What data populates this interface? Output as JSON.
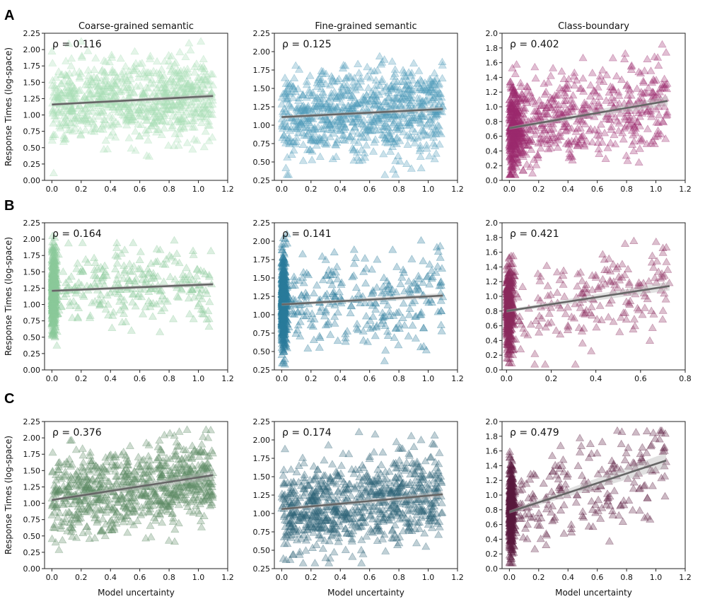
{
  "row_labels": [
    "A",
    "B",
    "C"
  ],
  "colors": {
    "A": [
      "#a8ddb5",
      "#4f9bba",
      "#9c2a6e"
    ],
    "B": [
      "#8cc99a",
      "#2a7c9c",
      "#8a2a5e"
    ],
    "C": [
      "#5e8a65",
      "#2e6478",
      "#5a1a3e"
    ],
    "fit_line": "#666666",
    "ci_band": "#bbbbbb"
  },
  "chart_data": [
    {
      "type": "scatter",
      "row": "A",
      "col": 0,
      "title": "Coarse-grained semantic",
      "rho": "ρ = 0.116",
      "ylabel": "Response Times (log-space)",
      "xlabel": "",
      "xlim": [
        -0.05,
        1.2
      ],
      "ylim": [
        0,
        2.25
      ],
      "xticks": [
        "0.0",
        "0.2",
        "0.4",
        "0.6",
        "0.8",
        "1.0",
        "1.2"
      ],
      "yticks": [
        "0.00",
        "0.25",
        "0.50",
        "0.75",
        "1.00",
        "1.25",
        "1.50",
        "1.75",
        "2.00",
        "2.25"
      ],
      "fit": {
        "x0": 0,
        "y0": 1.16,
        "x1": 1.1,
        "y1": 1.29
      },
      "scatter": {
        "dist": "uniform",
        "xmin": 0,
        "xmax": 1.1,
        "mean": 1.25,
        "sd": 0.3,
        "n": 800,
        "opacity": 0.3
      }
    },
    {
      "type": "scatter",
      "row": "A",
      "col": 1,
      "title": "Fine-grained semantic",
      "rho": "ρ = 0.125",
      "ylabel": "",
      "xlabel": "",
      "xlim": [
        -0.05,
        1.2
      ],
      "ylim": [
        0.25,
        2.25
      ],
      "xticks": [
        "0.0",
        "0.2",
        "0.4",
        "0.6",
        "0.8",
        "1.0",
        "1.2"
      ],
      "yticks": [
        "0.25",
        "0.50",
        "0.75",
        "1.00",
        "1.25",
        "1.50",
        "1.75",
        "2.00",
        "2.25"
      ],
      "fit": {
        "x0": 0,
        "y0": 1.11,
        "x1": 1.1,
        "y1": 1.22
      },
      "scatter": {
        "dist": "uniform",
        "xmin": 0,
        "xmax": 1.1,
        "mean": 1.15,
        "sd": 0.3,
        "n": 800,
        "opacity": 0.3
      }
    },
    {
      "type": "scatter",
      "row": "A",
      "col": 2,
      "title": "Class-boundary",
      "rho": "ρ = 0.402",
      "ylabel": "",
      "xlabel": "",
      "xlim": [
        -0.05,
        1.2
      ],
      "ylim": [
        0,
        2.0
      ],
      "xticks": [
        "0.0",
        "0.2",
        "0.4",
        "0.6",
        "0.8",
        "1.0",
        "1.2"
      ],
      "yticks": [
        "0.0",
        "0.2",
        "0.4",
        "0.6",
        "0.8",
        "1.0",
        "1.2",
        "1.4",
        "1.6",
        "1.8",
        "2.0"
      ],
      "fit": {
        "x0": 0,
        "y0": 0.71,
        "x1": 1.08,
        "y1": 1.08
      },
      "scatter": {
        "dist": "mixed",
        "xmin": 0,
        "xmax": 1.08,
        "mean": 0.85,
        "sd": 0.3,
        "n": 800,
        "opacity": 0.3
      }
    },
    {
      "type": "scatter",
      "row": "B",
      "col": 0,
      "title": "",
      "rho": "ρ = 0.164",
      "ylabel": "Response Times (log-space)",
      "xlabel": "",
      "xlim": [
        -0.05,
        1.2
      ],
      "ylim": [
        0,
        2.25
      ],
      "xticks": [
        "0.0",
        "0.2",
        "0.4",
        "0.6",
        "0.8",
        "1.0",
        "1.2"
      ],
      "yticks": [
        "0.00",
        "0.25",
        "0.50",
        "0.75",
        "1.00",
        "1.25",
        "1.50",
        "1.75",
        "2.00",
        "2.25"
      ],
      "fit": {
        "x0": 0,
        "y0": 1.21,
        "x1": 1.1,
        "y1": 1.31
      },
      "scatter": {
        "dist": "concentrated",
        "xmin": 0,
        "xmax": 1.1,
        "mean": 1.25,
        "sd": 0.3,
        "n": 800,
        "opacity": 0.3
      }
    },
    {
      "type": "scatter",
      "row": "B",
      "col": 1,
      "title": "",
      "rho": "ρ = 0.141",
      "ylabel": "",
      "xlabel": "",
      "xlim": [
        -0.05,
        1.2
      ],
      "ylim": [
        0.25,
        2.25
      ],
      "xticks": [
        "0.0",
        "0.2",
        "0.4",
        "0.6",
        "0.8",
        "1.0",
        "1.2"
      ],
      "yticks": [
        "0.25",
        "0.50",
        "0.75",
        "1.00",
        "1.25",
        "1.50",
        "1.75",
        "2.00",
        "2.25"
      ],
      "fit": {
        "x0": 0,
        "y0": 1.14,
        "x1": 1.1,
        "y1": 1.26
      },
      "scatter": {
        "dist": "concentrated",
        "xmin": 0,
        "xmax": 1.1,
        "mean": 1.15,
        "sd": 0.3,
        "n": 800,
        "opacity": 0.3
      }
    },
    {
      "type": "scatter",
      "row": "B",
      "col": 2,
      "title": "",
      "rho": "ρ = 0.421",
      "ylabel": "",
      "xlabel": "",
      "xlim": [
        -0.02,
        0.8
      ],
      "ylim": [
        0,
        2.0
      ],
      "xticks": [
        "0.0",
        "0.2",
        "0.4",
        "0.6",
        "0.8"
      ],
      "yticks": [
        "0.0",
        "0.2",
        "0.4",
        "0.6",
        "0.8",
        "1.0",
        "1.2",
        "1.4",
        "1.6",
        "1.8",
        "2.0"
      ],
      "fit": {
        "x0": 0,
        "y0": 0.8,
        "x1": 0.73,
        "y1": 1.14
      },
      "scatter": {
        "dist": "concentrated",
        "xmin": 0,
        "xmax": 0.73,
        "mean": 0.85,
        "sd": 0.3,
        "n": 600,
        "opacity": 0.3
      }
    },
    {
      "type": "scatter",
      "row": "C",
      "col": 0,
      "title": "",
      "rho": "ρ = 0.376",
      "ylabel": "Response Times (log-space)",
      "xlabel": "Model uncertainty",
      "xlim": [
        -0.05,
        1.2
      ],
      "ylim": [
        0,
        2.25
      ],
      "xticks": [
        "0.0",
        "0.2",
        "0.4",
        "0.6",
        "0.8",
        "1.0",
        "1.2"
      ],
      "yticks": [
        "0.00",
        "0.25",
        "0.50",
        "0.75",
        "1.00",
        "1.25",
        "1.50",
        "1.75",
        "2.00",
        "2.25"
      ],
      "fit": {
        "x0": 0,
        "y0": 1.05,
        "x1": 1.1,
        "y1": 1.43
      },
      "scatter": {
        "dist": "uniform",
        "xmin": 0,
        "xmax": 1.1,
        "mean": 1.25,
        "sd": 0.3,
        "n": 800,
        "opacity": 0.3
      }
    },
    {
      "type": "scatter",
      "row": "C",
      "col": 1,
      "title": "",
      "rho": "ρ = 0.174",
      "ylabel": "",
      "xlabel": "Model uncertainty",
      "xlim": [
        -0.05,
        1.2
      ],
      "ylim": [
        0.25,
        2.25
      ],
      "xticks": [
        "0.0",
        "0.2",
        "0.4",
        "0.6",
        "0.8",
        "1.0",
        "1.2"
      ],
      "yticks": [
        "0.25",
        "0.50",
        "0.75",
        "1.00",
        "1.25",
        "1.50",
        "1.75",
        "2.00",
        "2.25"
      ],
      "fit": {
        "x0": 0,
        "y0": 1.06,
        "x1": 1.1,
        "y1": 1.26
      },
      "scatter": {
        "dist": "uniform",
        "xmin": 0,
        "xmax": 1.1,
        "mean": 1.15,
        "sd": 0.3,
        "n": 800,
        "opacity": 0.3
      }
    },
    {
      "type": "scatter",
      "row": "C",
      "col": 2,
      "title": "",
      "rho": "ρ = 0.479",
      "ylabel": "",
      "xlabel": "Model uncertainty",
      "xlim": [
        -0.05,
        1.2
      ],
      "ylim": [
        0,
        2.0
      ],
      "xticks": [
        "0.0",
        "0.2",
        "0.4",
        "0.6",
        "0.8",
        "1.0",
        "1.2"
      ],
      "yticks": [
        "0.0",
        "0.2",
        "0.4",
        "0.6",
        "0.8",
        "1.0",
        "1.2",
        "1.4",
        "1.6",
        "1.8",
        "2.0"
      ],
      "fit": {
        "x0": 0,
        "y0": 0.77,
        "x1": 1.07,
        "y1": 1.47
      },
      "scatter": {
        "dist": "concentrated",
        "xmin": 0,
        "xmax": 1.07,
        "mean": 0.9,
        "sd": 0.3,
        "n": 600,
        "opacity": 0.3
      }
    }
  ]
}
